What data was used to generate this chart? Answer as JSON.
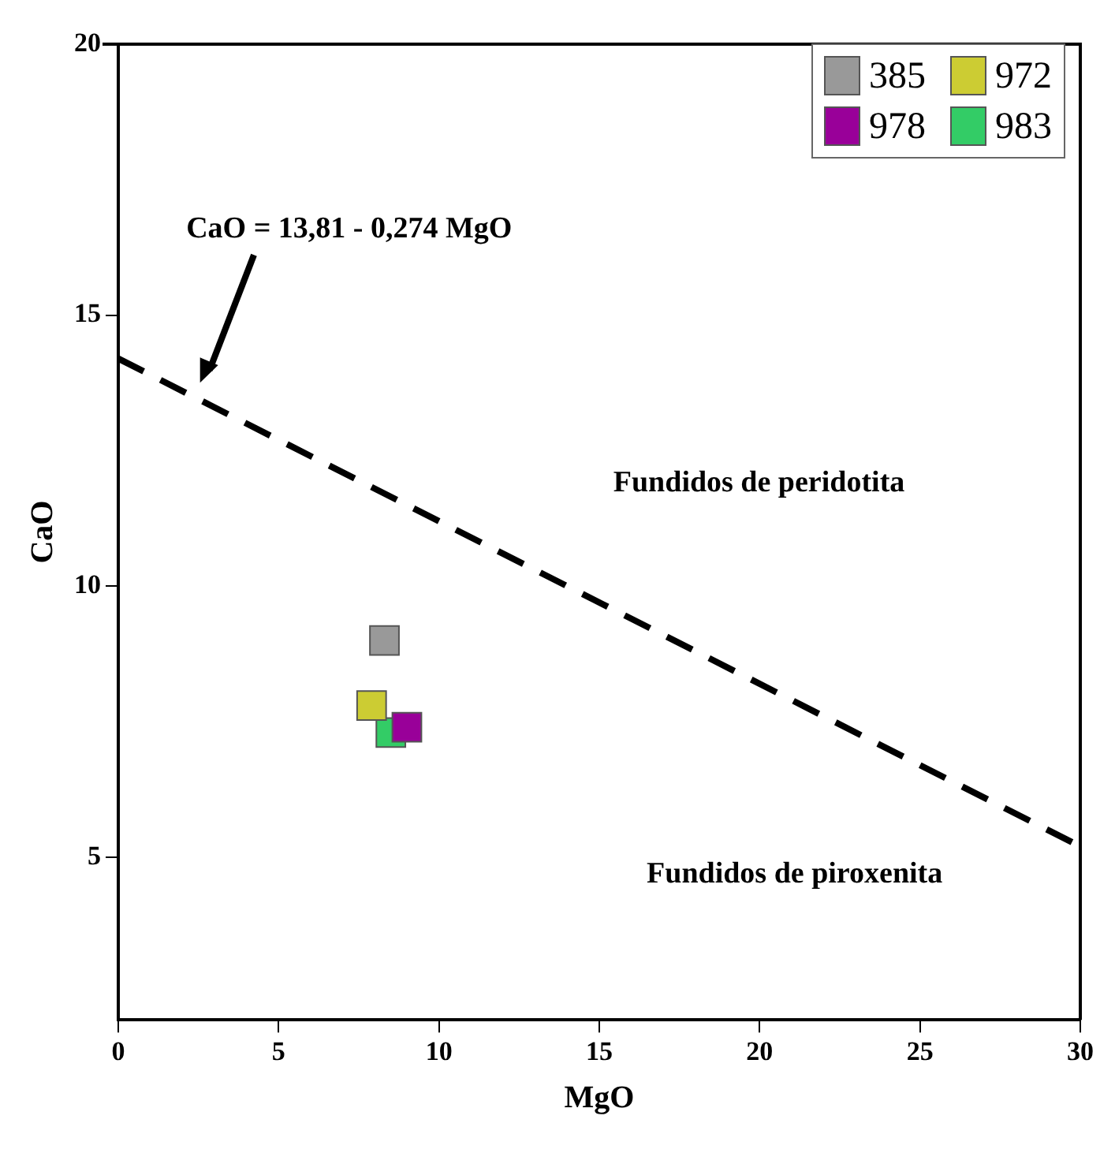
{
  "chart_data": {
    "type": "scatter",
    "xlabel": "MgO",
    "ylabel": "CaO",
    "xlim": [
      0,
      30
    ],
    "ylim": [
      2,
      20
    ],
    "xticks": [
      0,
      5,
      10,
      15,
      20,
      25,
      30
    ],
    "yticks": [
      5,
      10,
      15,
      20
    ],
    "grid": false,
    "legend": "top right",
    "marker": "square",
    "series": [
      {
        "name": "385",
        "color": "#999999",
        "x": [
          8.3
        ],
        "values": [
          9.0
        ]
      },
      {
        "name": "972",
        "color": "#cccc33",
        "x": [
          7.9
        ],
        "values": [
          7.8
        ]
      },
      {
        "name": "978",
        "color": "#990099",
        "x": [
          9.0
        ],
        "values": [
          7.4
        ]
      },
      {
        "name": "983",
        "color": "#33cc66",
        "x": [
          8.5
        ],
        "values": [
          7.3
        ]
      },
      {
        "type": "line",
        "color": "#000000",
        "line_style": "dashed",
        "marker": "none",
        "x": [
          0,
          30
        ],
        "values": [
          14.2,
          5.2
        ]
      }
    ],
    "annotations": [
      "CaO = 13,81 - 0,274 MgO",
      "Fundidos de peridotita",
      "Fundidos de piroxenita"
    ]
  }
}
